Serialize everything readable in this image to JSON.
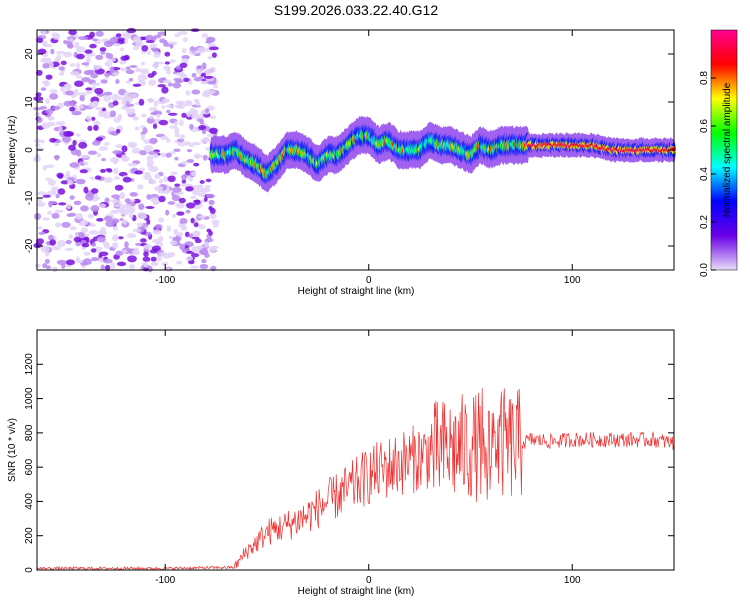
{
  "title": "S199.2026.033.22.40.G12",
  "colors": {
    "snr_line": "#f03030",
    "frame": "#000000"
  },
  "chart_data": [
    {
      "type": "heatmap",
      "name": "spectrogram",
      "xlabel": "Height of straight line (km)",
      "ylabel": "Frequency (Hz)",
      "xlim": [
        -163,
        150
      ],
      "ylim": [
        -25,
        25
      ],
      "xticks": [
        -100,
        0,
        100
      ],
      "xtick_labels": [
        "-100",
        "0",
        "100"
      ],
      "yticks": [
        -20,
        -10,
        0,
        10,
        20
      ],
      "ytick_labels": [
        "-20",
        "-10",
        "0",
        "10",
        "20"
      ],
      "noise_region_x": [
        -163,
        -75
      ],
      "signal_track": {
        "x": [
          -77,
          -70,
          -65,
          -60,
          -55,
          -50,
          -45,
          -40,
          -35,
          -30,
          -25,
          -20,
          -15,
          -10,
          -5,
          0,
          5,
          10,
          15,
          20,
          25,
          30,
          35,
          40,
          45,
          50,
          55,
          60,
          65,
          70,
          75,
          80,
          90,
          100,
          110,
          120,
          130,
          140,
          150
        ],
        "y": [
          -1,
          -1,
          0,
          -2,
          -3,
          -5,
          -3,
          0,
          0,
          -1,
          -3,
          -1,
          -1,
          1,
          3,
          3,
          1,
          2,
          0,
          0,
          0,
          2,
          1,
          1,
          0,
          -1,
          1,
          0,
          1,
          1,
          1,
          1,
          1,
          1,
          1,
          0,
          0,
          0,
          0
        ]
      },
      "colorbar": {
        "label": "Normalized spectral amplitude",
        "range": [
          0,
          1
        ],
        "ticks": [
          0.0,
          0.2,
          0.4,
          0.6,
          0.8
        ],
        "tick_labels": [
          "0.0",
          "0.2",
          "0.4",
          "0.6",
          "0.8"
        ],
        "colors": [
          "#e8dcf8",
          "#6a00e8",
          "#0000ff",
          "#00ffff",
          "#00ff00",
          "#ffff00",
          "#ff0000",
          "#ff0090"
        ]
      }
    },
    {
      "type": "line",
      "name": "snr",
      "xlabel": "Height of straight line (km)",
      "ylabel": "SNR (10 * v/v)",
      "xlim": [
        -163,
        150
      ],
      "ylim": [
        0,
        1400
      ],
      "xticks": [
        -100,
        0,
        100
      ],
      "xtick_labels": [
        "-100",
        "0",
        "100"
      ],
      "yticks": [
        0,
        200,
        400,
        600,
        800,
        1000,
        1200
      ],
      "ytick_labels": [
        "0",
        "200",
        "400",
        "600",
        "800",
        "1000",
        "1200"
      ],
      "envelope": {
        "x": [
          -163,
          -100,
          -66,
          -60,
          -55,
          -50,
          -40,
          -30,
          -20,
          -10,
          0,
          10,
          20,
          30,
          40,
          50,
          60,
          65,
          70,
          75,
          80,
          90,
          100,
          110,
          120,
          130,
          140,
          150
        ],
        "y": [
          10,
          10,
          15,
          110,
          160,
          220,
          260,
          320,
          400,
          470,
          550,
          600,
          640,
          680,
          700,
          720,
          720,
          740,
          720,
          740,
          760,
          750,
          760,
          760,
          760,
          760,
          760,
          740
        ]
      }
    }
  ]
}
